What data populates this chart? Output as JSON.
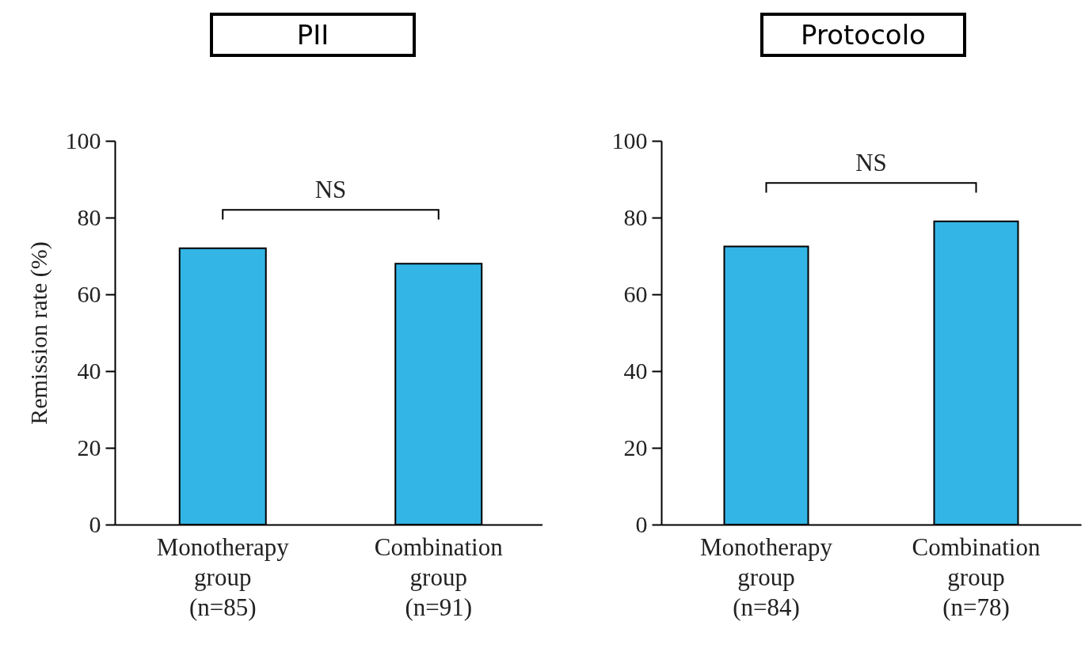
{
  "chart_data": [
    {
      "type": "bar",
      "title": "PII",
      "ylabel": "Remission rate (%)",
      "categories": [
        "Monotherapy group (n=85)",
        "Combination group (n=91)"
      ],
      "values": [
        72,
        68
      ],
      "color": "#33b5e5",
      "ylim": [
        0,
        100
      ],
      "yticks": [
        0,
        20,
        40,
        60,
        80,
        100
      ],
      "annotations": [
        "NS"
      ]
    },
    {
      "type": "bar",
      "title": "Protocolo",
      "categories": [
        "Monotherapy group (n=84)",
        "Combination group (n=78)"
      ],
      "values": [
        72.5,
        79
      ],
      "color": "#33b5e5",
      "ylim": [
        0,
        100
      ],
      "yticks": [
        0,
        20,
        40,
        60,
        80,
        100
      ],
      "annotations": [
        "NS"
      ]
    }
  ]
}
